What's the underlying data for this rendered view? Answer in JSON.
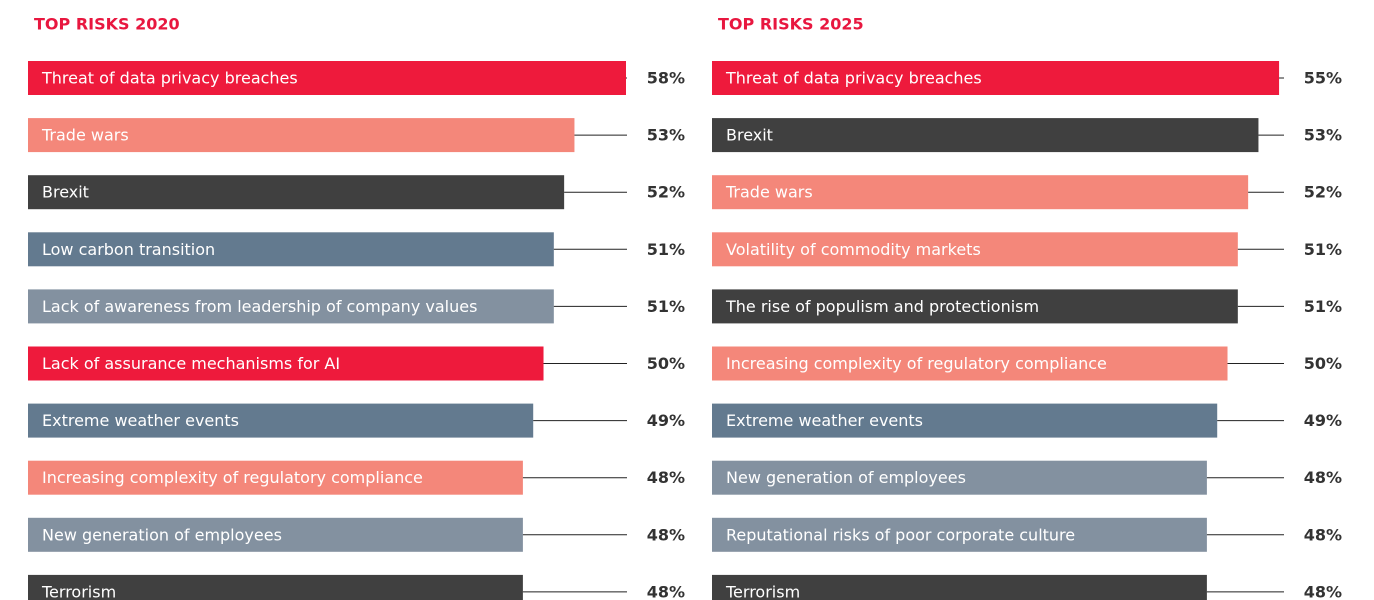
{
  "chart_data": [
    {
      "type": "bar",
      "title": "TOP RISKS 2020",
      "categories": [
        "Threat of data privacy breaches",
        "Trade wars",
        "Brexit",
        "Low carbon transition",
        "Lack of awareness from leadership of company values",
        "Lack of assurance mechanisms for AI",
        "Extreme weather events",
        "Increasing complexity of regulatory compliance",
        "New generation of employees",
        "Terrorism"
      ],
      "values": [
        58,
        53,
        52,
        51,
        51,
        50,
        49,
        48,
        48,
        48
      ],
      "value_labels": [
        "58%",
        "53%",
        "52%",
        "51%",
        "51%",
        "50%",
        "49%",
        "48%",
        "48%",
        "48%"
      ],
      "colors": [
        "#ee1a3c",
        "#f4877a",
        "#404040",
        "#637a8f",
        "#8391a0",
        "#ee1a3c",
        "#637a8f",
        "#f4877a",
        "#8391a0",
        "#404040"
      ]
    },
    {
      "type": "bar",
      "title": "TOP RISKS 2025",
      "categories": [
        "Threat of data privacy breaches",
        "Brexit",
        "Trade wars",
        "Volatility of commodity markets",
        "The rise of populism and protectionism",
        "Increasing complexity of regulatory compliance",
        "Extreme weather events",
        "New generation of employees",
        "Reputational risks of poor corporate culture",
        "Terrorism"
      ],
      "values": [
        55,
        53,
        52,
        51,
        51,
        50,
        49,
        48,
        48,
        48
      ],
      "value_labels": [
        "55%",
        "53%",
        "52%",
        "51%",
        "51%",
        "50%",
        "49%",
        "48%",
        "48%",
        "48%"
      ],
      "colors": [
        "#ee1a3c",
        "#404040",
        "#f4877a",
        "#f4877a",
        "#404040",
        "#f4877a",
        "#637a8f",
        "#8391a0",
        "#8391a0",
        "#404040"
      ]
    }
  ]
}
